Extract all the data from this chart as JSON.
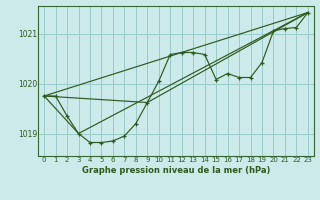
{
  "title": "Graphe pression niveau de la mer (hPa)",
  "bg_color": "#cceaea",
  "grid_color": "#99cccc",
  "line_color": "#2d5a1e",
  "spine_color": "#336633",
  "tick_color": "#2d5a1e",
  "xlim": [
    -0.5,
    23.5
  ],
  "ylim": [
    1018.55,
    1021.55
  ],
  "yticks": [
    1019,
    1020,
    1021
  ],
  "xticks": [
    0,
    1,
    2,
    3,
    4,
    5,
    6,
    7,
    8,
    9,
    10,
    11,
    12,
    13,
    14,
    15,
    16,
    17,
    18,
    19,
    20,
    21,
    22,
    23
  ],
  "line1_x": [
    0,
    1,
    2,
    3,
    4,
    5,
    6,
    7,
    8,
    9,
    10,
    11,
    12,
    13,
    14,
    15,
    16,
    17,
    18,
    19,
    20,
    21,
    22,
    23
  ],
  "line1_y": [
    1019.75,
    1019.75,
    1019.35,
    1019.0,
    1018.82,
    1018.82,
    1018.85,
    1018.95,
    1019.2,
    1019.62,
    1020.05,
    1020.58,
    1020.62,
    1020.62,
    1020.58,
    1020.08,
    1020.2,
    1020.12,
    1020.12,
    1020.42,
    1021.05,
    1021.1,
    1021.12,
    1021.42
  ],
  "line2_x": [
    0,
    23
  ],
  "line2_y": [
    1019.75,
    1021.42
  ],
  "line3_x": [
    0,
    3,
    23
  ],
  "line3_y": [
    1019.75,
    1019.0,
    1021.42
  ],
  "line4_x": [
    0,
    9,
    23
  ],
  "line4_y": [
    1019.75,
    1019.62,
    1021.42
  ]
}
